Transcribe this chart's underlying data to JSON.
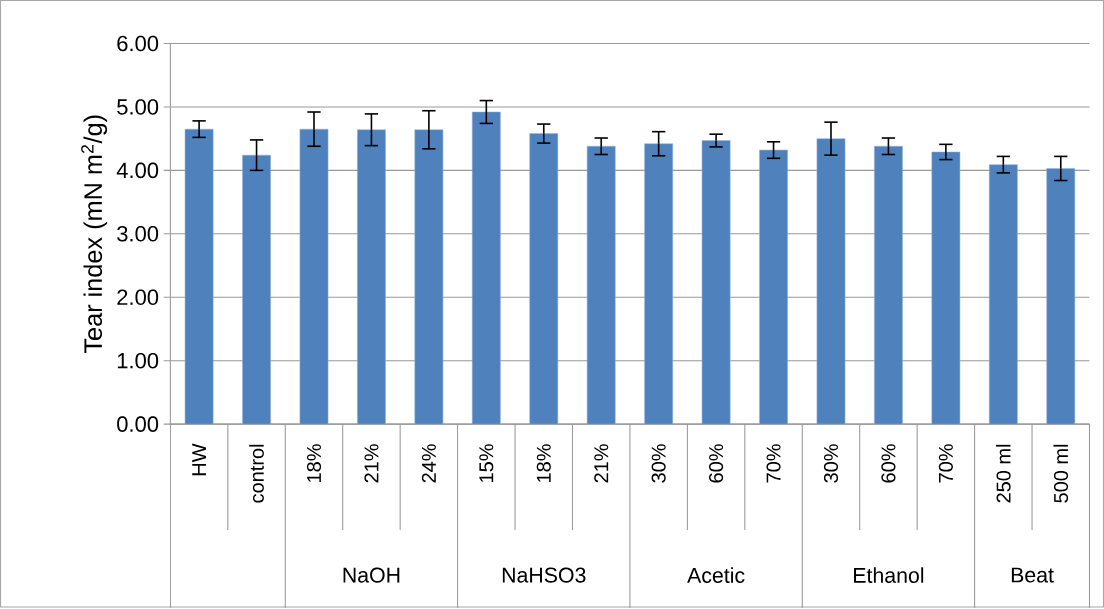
{
  "chart_data": {
    "type": "bar",
    "ylabel": "Tear index (mN m$^{2}$/g)",
    "categories": [
      "HW",
      "control",
      "18%",
      "21%",
      "24%",
      "15%",
      "18%",
      "21%",
      "30%",
      "60%",
      "70%",
      "30%",
      "60%",
      "70%",
      "250 ml",
      "500 ml"
    ],
    "values": [
      4.65,
      4.24,
      4.65,
      4.64,
      4.64,
      4.92,
      4.58,
      4.38,
      4.42,
      4.47,
      4.32,
      4.5,
      4.38,
      4.29,
      4.09,
      4.03
    ],
    "errors": [
      0.13,
      0.24,
      0.27,
      0.25,
      0.3,
      0.18,
      0.15,
      0.13,
      0.19,
      0.1,
      0.13,
      0.26,
      0.13,
      0.12,
      0.13,
      0.19
    ],
    "color": "#4f81bd",
    "ylim": [
      0,
      6
    ],
    "yticks": [
      {
        "value": 0,
        "label": "0.00"
      },
      {
        "value": 1,
        "label": "1.00"
      },
      {
        "value": 2,
        "label": "2.00"
      },
      {
        "value": 3,
        "label": "3.00"
      },
      {
        "value": 4,
        "label": "4.00"
      },
      {
        "value": 5,
        "label": "5.00"
      },
      {
        "value": 6,
        "label": "6.00"
      }
    ],
    "grid": "y",
    "annotations": [
      "NaOH",
      "NaHSO3",
      "Acetic",
      "Ethanol",
      "Beat"
    ]
  }
}
